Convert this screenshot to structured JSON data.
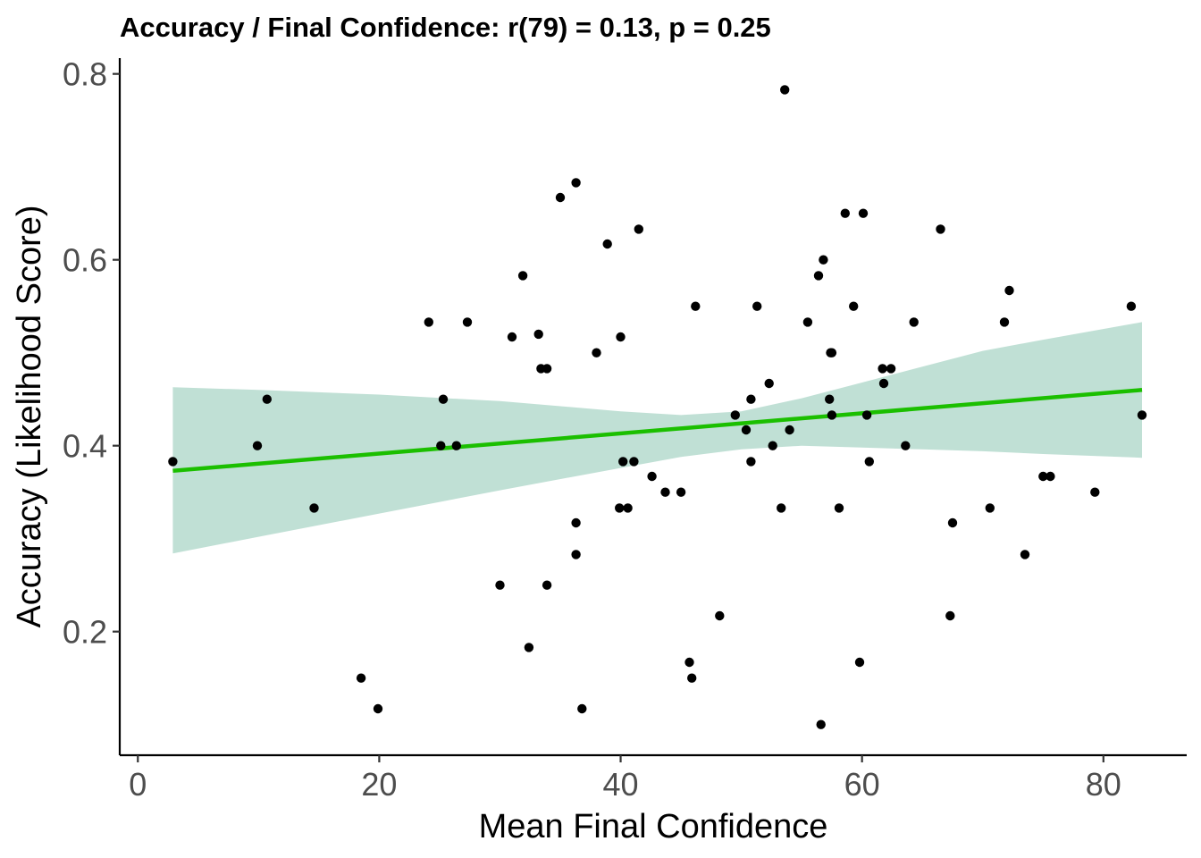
{
  "chart_data": {
    "type": "scatter",
    "title": "Accuracy / Final Confidence: r(79) = 0.13, p = 0.25",
    "xlabel": "Mean Final Confidence",
    "ylabel": "Accuracy (Likelihood Score)",
    "xlim": [
      -1.5,
      86.9
    ],
    "ylim": [
      0.067,
      0.817
    ],
    "x_ticks": [
      0,
      20,
      40,
      60,
      80
    ],
    "x_tick_labels": [
      "0",
      "20",
      "40",
      "60",
      "80"
    ],
    "y_ticks": [
      0.2,
      0.4,
      0.6,
      0.8
    ],
    "y_tick_labels": [
      "0.2",
      "0.4",
      "0.6",
      "0.8"
    ],
    "grid": false,
    "legend": "none",
    "colors": {
      "points": "#000000",
      "fit_line": "#1bbf00",
      "ci_band": "#9ecfbf"
    },
    "points": [
      [
        2.9,
        0.383
      ],
      [
        9.9,
        0.4
      ],
      [
        10.7,
        0.45
      ],
      [
        14.6,
        0.333
      ],
      [
        18.5,
        0.15
      ],
      [
        19.9,
        0.117
      ],
      [
        24.1,
        0.533
      ],
      [
        25.1,
        0.4
      ],
      [
        25.3,
        0.45
      ],
      [
        26.4,
        0.4
      ],
      [
        27.3,
        0.533
      ],
      [
        30.0,
        0.25
      ],
      [
        31.0,
        0.517
      ],
      [
        31.9,
        0.583
      ],
      [
        32.4,
        0.183
      ],
      [
        33.2,
        0.52
      ],
      [
        33.4,
        0.483
      ],
      [
        33.9,
        0.483
      ],
      [
        33.9,
        0.25
      ],
      [
        35.0,
        0.667
      ],
      [
        36.3,
        0.683
      ],
      [
        36.3,
        0.317
      ],
      [
        36.3,
        0.283
      ],
      [
        36.8,
        0.117
      ],
      [
        38.0,
        0.5
      ],
      [
        38.9,
        0.617
      ],
      [
        39.9,
        0.333
      ],
      [
        40.0,
        0.517
      ],
      [
        40.2,
        0.383
      ],
      [
        40.6,
        0.333
      ],
      [
        41.1,
        0.383
      ],
      [
        41.5,
        0.633
      ],
      [
        42.6,
        0.367
      ],
      [
        43.7,
        0.35
      ],
      [
        45.0,
        0.35
      ],
      [
        45.7,
        0.167
      ],
      [
        45.9,
        0.15
      ],
      [
        46.2,
        0.55
      ],
      [
        48.2,
        0.217
      ],
      [
        49.5,
        0.433
      ],
      [
        50.4,
        0.417
      ],
      [
        50.8,
        0.45
      ],
      [
        50.8,
        0.383
      ],
      [
        51.3,
        0.55
      ],
      [
        52.3,
        0.467
      ],
      [
        52.6,
        0.4
      ],
      [
        53.3,
        0.333
      ],
      [
        53.6,
        0.783
      ],
      [
        54.0,
        0.417
      ],
      [
        55.5,
        0.533
      ],
      [
        56.4,
        0.583
      ],
      [
        56.6,
        0.1
      ],
      [
        56.8,
        0.6
      ],
      [
        57.3,
        0.45
      ],
      [
        57.4,
        0.5
      ],
      [
        57.5,
        0.5
      ],
      [
        57.5,
        0.433
      ],
      [
        58.1,
        0.333
      ],
      [
        58.6,
        0.65
      ],
      [
        59.3,
        0.55
      ],
      [
        59.8,
        0.167
      ],
      [
        60.1,
        0.65
      ],
      [
        60.4,
        0.433
      ],
      [
        60.6,
        0.383
      ],
      [
        61.7,
        0.483
      ],
      [
        61.8,
        0.467
      ],
      [
        62.4,
        0.483
      ],
      [
        63.6,
        0.4
      ],
      [
        64.3,
        0.533
      ],
      [
        66.5,
        0.633
      ],
      [
        67.3,
        0.217
      ],
      [
        67.5,
        0.317
      ],
      [
        70.6,
        0.333
      ],
      [
        71.8,
        0.533
      ],
      [
        72.2,
        0.567
      ],
      [
        73.5,
        0.283
      ],
      [
        75.0,
        0.367
      ],
      [
        75.6,
        0.367
      ],
      [
        79.3,
        0.35
      ],
      [
        82.3,
        0.55
      ],
      [
        83.2,
        0.433
      ]
    ],
    "fit": {
      "x": [
        2.9,
        83.2
      ],
      "y": [
        0.373,
        0.46
      ]
    },
    "ci_band": {
      "x": [
        2.9,
        10,
        20,
        30,
        40,
        45,
        50,
        55,
        60,
        65,
        70,
        75,
        83.2
      ],
      "lower": [
        0.284,
        0.302,
        0.327,
        0.352,
        0.376,
        0.388,
        0.396,
        0.4,
        0.398,
        0.396,
        0.394,
        0.391,
        0.387
      ],
      "upper": [
        0.463,
        0.46,
        0.455,
        0.448,
        0.437,
        0.433,
        0.437,
        0.451,
        0.468,
        0.485,
        0.502,
        0.514,
        0.533
      ]
    }
  }
}
